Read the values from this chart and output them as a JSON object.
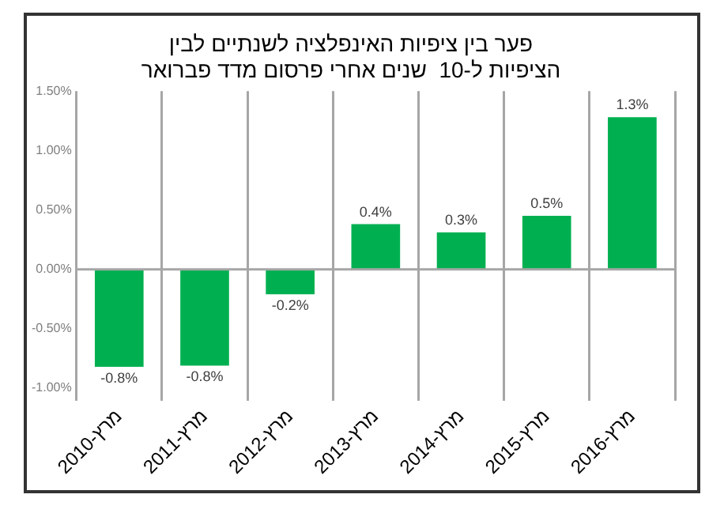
{
  "chart_data": {
    "type": "bar",
    "title": [
      "פער בין ציפיות האינפלציה לשנתיים לבין",
      "הציפיות ל-10  שנים אחרי פרסום מדד פברואר"
    ],
    "categories": [
      "2010-מרץ",
      "2011-מרץ",
      "2012-מרץ",
      "2013-מרץ",
      "2014-מרץ",
      "2015-מרץ",
      "2016-מרץ"
    ],
    "values": [
      -0.82,
      -0.81,
      -0.21,
      0.38,
      0.31,
      0.45,
      1.28
    ],
    "ref_lines": [
      {
        "axis": "y",
        "value": 0,
        "color": "#a6a6a6"
      }
    ],
    "value_labels": [
      "-0.8%",
      "-0.8%",
      "-0.2%",
      "0.4%",
      "0.3%",
      "0.5%",
      "1.3%"
    ],
    "color": "#00b050",
    "ylim": [
      -1,
      1.5
    ],
    "yticks": [
      {
        "value": -1,
        "label": "-1.00%"
      },
      {
        "value": -0.5,
        "label": "-0.50%"
      },
      {
        "value": 0,
        "label": "0.00%"
      },
      {
        "value": 0.5,
        "label": "0.50%"
      },
      {
        "value": 1,
        "label": "1.00%"
      },
      {
        "value": 1.5,
        "label": "1.50%"
      }
    ],
    "grid": "x",
    "legend": false
  }
}
